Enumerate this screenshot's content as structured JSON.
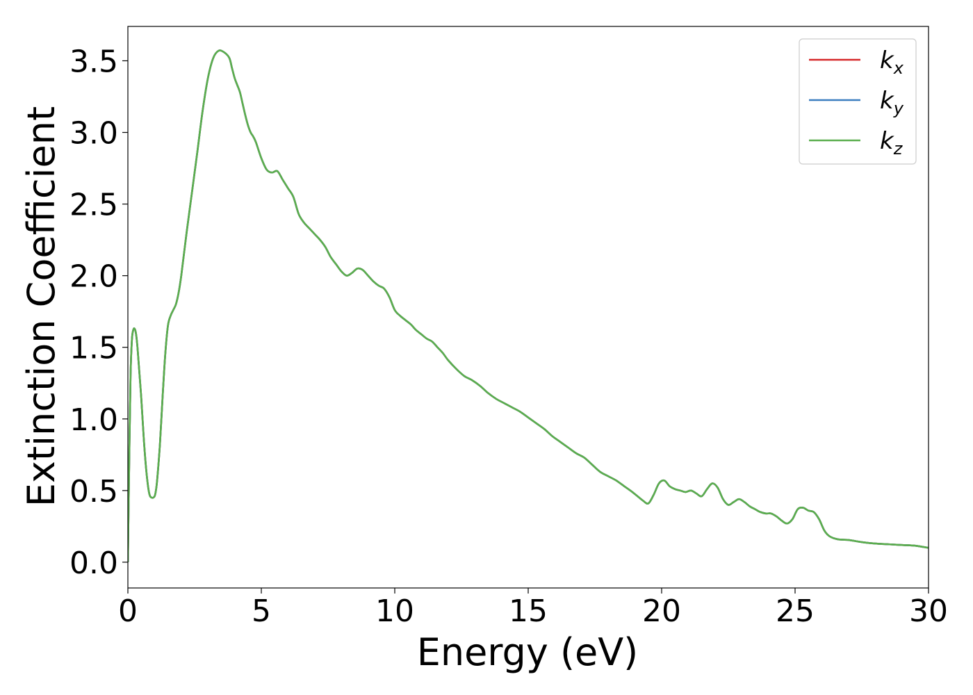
{
  "chart_data": {
    "type": "line",
    "title": "",
    "xlabel": "Energy (eV)",
    "ylabel": "Extinction Coefficient",
    "xlim": [
      0,
      30
    ],
    "ylim": [
      -0.18,
      3.74
    ],
    "xticks": [
      0,
      5,
      10,
      15,
      20,
      25,
      30
    ],
    "xtick_labels": [
      "0",
      "5",
      "10",
      "15",
      "20",
      "25",
      "30"
    ],
    "yticks": [
      0.0,
      0.5,
      1.0,
      1.5,
      2.0,
      2.5,
      3.0,
      3.5
    ],
    "ytick_labels": [
      "0.0",
      "0.5",
      "1.0",
      "1.5",
      "2.0",
      "2.5",
      "3.0",
      "3.5"
    ],
    "grid": false,
    "legend_position": "top-right",
    "series": [
      {
        "name": "k_x",
        "label_base": "k",
        "label_sub": "x",
        "color": "#d62728",
        "x": [
          0,
          0.05,
          0.1,
          0.15,
          0.2,
          0.25,
          0.3,
          0.35,
          0.4,
          0.5,
          0.6,
          0.7,
          0.8,
          0.9,
          1.0,
          1.05,
          1.1,
          1.2,
          1.3,
          1.4,
          1.5,
          1.6,
          1.7,
          1.8,
          1.9,
          2.0,
          2.2,
          2.4,
          2.6,
          2.8,
          3.0,
          3.2,
          3.4,
          3.6,
          3.8,
          3.9,
          4.0,
          4.1,
          4.2,
          4.3,
          4.4,
          4.5,
          4.6,
          4.7,
          4.8,
          5.0,
          5.2,
          5.4,
          5.6,
          5.8,
          6.0,
          6.2,
          6.4,
          6.6,
          6.8,
          7.0,
          7.2,
          7.4,
          7.6,
          7.8,
          8.0,
          8.2,
          8.4,
          8.6,
          8.8,
          9.0,
          9.2,
          9.4,
          9.6,
          9.8,
          10.0,
          10.2,
          10.4,
          10.6,
          10.8,
          11.0,
          11.2,
          11.4,
          11.6,
          11.8,
          12.0,
          12.3,
          12.6,
          12.9,
          13.2,
          13.5,
          13.8,
          14.1,
          14.4,
          14.7,
          15.0,
          15.3,
          15.6,
          15.9,
          16.2,
          16.5,
          16.8,
          17.1,
          17.4,
          17.7,
          18.0,
          18.3,
          18.6,
          18.9,
          19.1,
          19.3,
          19.5,
          19.7,
          19.9,
          20.1,
          20.3,
          20.5,
          20.7,
          20.9,
          21.1,
          21.3,
          21.5,
          21.7,
          21.9,
          22.1,
          22.3,
          22.5,
          22.7,
          22.9,
          23.1,
          23.3,
          23.5,
          23.7,
          23.9,
          24.1,
          24.3,
          24.5,
          24.7,
          24.9,
          25.1,
          25.3,
          25.5,
          25.7,
          25.9,
          26.1,
          26.3,
          26.6,
          27.0,
          27.5,
          28.0,
          28.5,
          29.0,
          29.5,
          30.0
        ],
        "y": [
          0.0,
          0.7,
          1.3,
          1.55,
          1.62,
          1.63,
          1.6,
          1.52,
          1.4,
          1.15,
          0.85,
          0.62,
          0.48,
          0.45,
          0.46,
          0.5,
          0.58,
          0.82,
          1.15,
          1.45,
          1.65,
          1.72,
          1.76,
          1.8,
          1.88,
          2.0,
          2.3,
          2.58,
          2.86,
          3.15,
          3.38,
          3.52,
          3.57,
          3.56,
          3.52,
          3.45,
          3.38,
          3.33,
          3.28,
          3.2,
          3.12,
          3.05,
          3.0,
          2.97,
          2.93,
          2.82,
          2.74,
          2.72,
          2.73,
          2.67,
          2.61,
          2.55,
          2.43,
          2.37,
          2.33,
          2.29,
          2.25,
          2.2,
          2.13,
          2.08,
          2.03,
          2.0,
          2.02,
          2.05,
          2.04,
          2.0,
          1.96,
          1.93,
          1.91,
          1.85,
          1.76,
          1.72,
          1.69,
          1.66,
          1.62,
          1.59,
          1.56,
          1.54,
          1.5,
          1.46,
          1.41,
          1.35,
          1.3,
          1.27,
          1.23,
          1.18,
          1.14,
          1.11,
          1.08,
          1.05,
          1.01,
          0.97,
          0.93,
          0.88,
          0.84,
          0.8,
          0.76,
          0.73,
          0.68,
          0.63,
          0.6,
          0.57,
          0.53,
          0.49,
          0.46,
          0.43,
          0.41,
          0.47,
          0.55,
          0.57,
          0.53,
          0.51,
          0.5,
          0.49,
          0.5,
          0.48,
          0.46,
          0.51,
          0.55,
          0.52,
          0.44,
          0.4,
          0.42,
          0.44,
          0.42,
          0.39,
          0.37,
          0.35,
          0.34,
          0.34,
          0.32,
          0.29,
          0.27,
          0.3,
          0.37,
          0.38,
          0.36,
          0.35,
          0.3,
          0.22,
          0.18,
          0.16,
          0.155,
          0.14,
          0.13,
          0.125,
          0.12,
          0.115,
          0.1
        ]
      },
      {
        "name": "k_y",
        "label_base": "k",
        "label_sub": "y",
        "color": "#3a7dbf",
        "same_as": 0
      },
      {
        "name": "k_z",
        "label_base": "k",
        "label_sub": "z",
        "color": "#5aae4d",
        "same_as": 0
      }
    ]
  }
}
